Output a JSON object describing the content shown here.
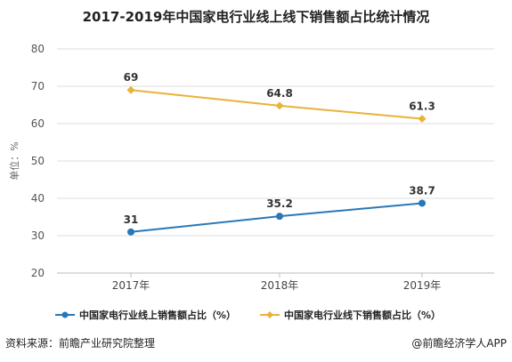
{
  "chart_data": {
    "type": "line",
    "title": "2017-2019年中国家电行业线上线下销售额占比统计情况",
    "ylabel": "单位：%",
    "xlabel": "",
    "categories": [
      "2017年",
      "2018年",
      "2019年"
    ],
    "yticks": [
      "20",
      "30",
      "40",
      "50",
      "60",
      "70",
      "80"
    ],
    "ylim": [
      20,
      80
    ],
    "grid": true,
    "legend_position": "bottom",
    "series": [
      {
        "name": "中国家电行业线上销售额占比（%）",
        "values": [
          31,
          35.2,
          38.7
        ],
        "labels": [
          "31",
          "35.2",
          "38.7"
        ],
        "color": "#2878b8",
        "marker": "circle"
      },
      {
        "name": "中国家电行业线下销售额占比（%）",
        "values": [
          69,
          64.8,
          61.3
        ],
        "labels": [
          "69",
          "64.8",
          "61.3"
        ],
        "color": "#e8b33a",
        "marker": "diamond"
      }
    ]
  },
  "footer": {
    "source": "资料来源：前瞻产业研究院整理",
    "brand": "@前瞻经济学人APP"
  }
}
